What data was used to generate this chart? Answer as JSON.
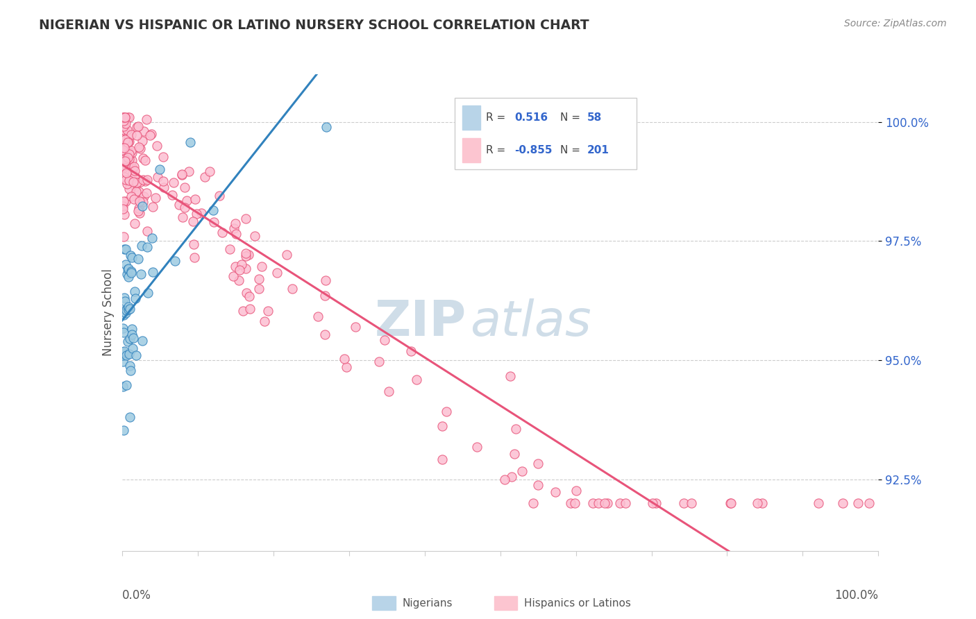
{
  "title": "NIGERIAN VS HISPANIC OR LATINO NURSERY SCHOOL CORRELATION CHART",
  "source": "Source: ZipAtlas.com",
  "ylabel": "Nursery School",
  "ytick_labels": [
    "92.5%",
    "95.0%",
    "97.5%",
    "100.0%"
  ],
  "ytick_values": [
    0.925,
    0.95,
    0.975,
    1.0
  ],
  "xmin": 0.0,
  "xmax": 1.0,
  "ymin": 0.91,
  "ymax": 1.01,
  "color_nigerian": "#9ecae1",
  "color_hispanic": "#fcbfd2",
  "color_nigerian_line": "#3182bd",
  "color_hispanic_line": "#e8547a",
  "legend_box_color1": "#b8d4e8",
  "legend_box_color2": "#fcc5d0",
  "watermark_color": "#cfdde8",
  "blue_label_color": "#3366cc",
  "title_color": "#333333",
  "source_color": "#888888",
  "grid_color": "#cccccc",
  "ylabel_color": "#555555",
  "tick_label_color": "#555555"
}
